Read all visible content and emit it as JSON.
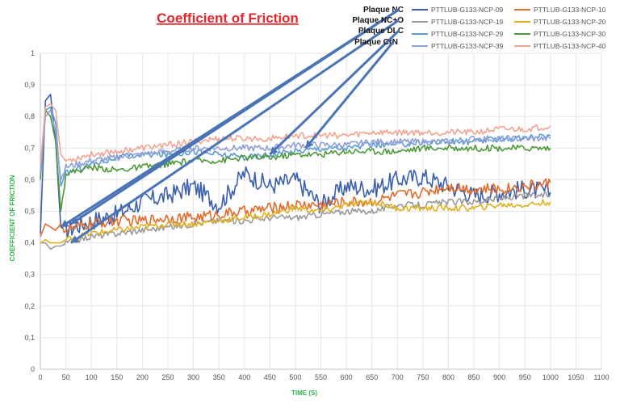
{
  "chart_data": {
    "type": "line",
    "title": "Coefficient of Friction",
    "xlabel": "TIME (S)",
    "ylabel": "COEFFICIENT OF FRICTION",
    "xlim": [
      0,
      1100
    ],
    "ylim": [
      0,
      1
    ],
    "x_ticks": [
      "0",
      "50",
      "100",
      "150",
      "200",
      "250",
      "300",
      "350",
      "400",
      "450",
      "500",
      "550",
      "600",
      "650",
      "700",
      "750",
      "800",
      "850",
      "900",
      "950",
      "1000",
      "1050",
      "1100"
    ],
    "y_ticks": [
      "0",
      "0,1",
      "0,2",
      "0,3",
      "0,4",
      "0,5",
      "0,6",
      "0,7",
      "0,8",
      "0,9",
      "1"
    ],
    "grid": true,
    "legend_position": "top-right",
    "annotations": [
      {
        "text": "Plaque NC",
        "points_to": [
          [
            60,
            0.46
          ],
          [
            40,
            0.45
          ]
        ]
      },
      {
        "text": "Plaque NC+O",
        "points_to": [
          [
            60,
            0.4
          ]
        ]
      },
      {
        "text": "Plaque DLC",
        "points_to": [
          [
            450,
            0.68
          ]
        ]
      },
      {
        "text": "Plaque CrN",
        "points_to": [
          [
            520,
            0.7
          ]
        ]
      }
    ],
    "series": [
      {
        "name": "PTTLUB-G133-NCP-09",
        "color": "#3a5fac",
        "x": [
          0,
          10,
          20,
          30,
          40,
          50,
          100,
          150,
          200,
          250,
          300,
          350,
          400,
          450,
          500,
          550,
          600,
          650,
          700,
          750,
          800,
          850,
          900,
          950,
          1000
        ],
        "y": [
          0.43,
          0.85,
          0.87,
          0.72,
          0.45,
          0.44,
          0.47,
          0.49,
          0.53,
          0.55,
          0.58,
          0.52,
          0.62,
          0.58,
          0.6,
          0.52,
          0.58,
          0.57,
          0.6,
          0.61,
          0.58,
          0.55,
          0.56,
          0.57,
          0.56
        ]
      },
      {
        "name": "PTTLUB-G133-NCP-10",
        "color": "#e36b2a",
        "x": [
          0,
          10,
          20,
          30,
          40,
          50,
          100,
          150,
          200,
          250,
          300,
          350,
          400,
          450,
          500,
          550,
          600,
          650,
          700,
          750,
          800,
          850,
          900,
          950,
          1000
        ],
        "y": [
          0.42,
          0.46,
          0.45,
          0.44,
          0.46,
          0.44,
          0.46,
          0.47,
          0.47,
          0.48,
          0.48,
          0.49,
          0.5,
          0.51,
          0.52,
          0.52,
          0.53,
          0.53,
          0.55,
          0.56,
          0.58,
          0.57,
          0.57,
          0.58,
          0.59
        ]
      },
      {
        "name": "PTTLUB-G133-NCP-19",
        "color": "#9a9a9a",
        "x": [
          0,
          10,
          20,
          30,
          40,
          50,
          100,
          150,
          200,
          250,
          300,
          350,
          400,
          450,
          500,
          550,
          600,
          650,
          700,
          750,
          800,
          850,
          900,
          950,
          1000
        ],
        "y": [
          0.4,
          0.4,
          0.38,
          0.39,
          0.39,
          0.4,
          0.42,
          0.43,
          0.44,
          0.45,
          0.46,
          0.47,
          0.47,
          0.48,
          0.48,
          0.49,
          0.5,
          0.5,
          0.52,
          0.52,
          0.53,
          0.53,
          0.54,
          0.55,
          0.55
        ]
      },
      {
        "name": "PTTLUB-G133-NCP-20",
        "color": "#e0b020",
        "x": [
          0,
          10,
          20,
          30,
          40,
          50,
          100,
          150,
          200,
          250,
          300,
          350,
          400,
          450,
          500,
          550,
          600,
          650,
          700,
          750,
          800,
          850,
          900,
          950,
          1000
        ],
        "y": [
          0.4,
          0.41,
          0.4,
          0.4,
          0.4,
          0.41,
          0.43,
          0.44,
          0.45,
          0.46,
          0.46,
          0.47,
          0.48,
          0.49,
          0.51,
          0.5,
          0.52,
          0.53,
          0.51,
          0.51,
          0.51,
          0.51,
          0.52,
          0.52,
          0.53
        ]
      },
      {
        "name": "PTTLUB-G133-NCP-29",
        "color": "#5b9bd5",
        "x": [
          0,
          10,
          20,
          30,
          40,
          50,
          100,
          150,
          200,
          250,
          300,
          350,
          400,
          450,
          500,
          550,
          600,
          650,
          700,
          750,
          800,
          850,
          900,
          950,
          1000
        ],
        "y": [
          0.62,
          0.82,
          0.83,
          0.78,
          0.58,
          0.62,
          0.65,
          0.67,
          0.68,
          0.68,
          0.69,
          0.68,
          0.67,
          0.68,
          0.69,
          0.7,
          0.7,
          0.71,
          0.71,
          0.72,
          0.72,
          0.72,
          0.73,
          0.73,
          0.74
        ]
      },
      {
        "name": "PTTLUB-G133-NCP-30",
        "color": "#4e9a3a",
        "x": [
          0,
          10,
          20,
          30,
          40,
          50,
          100,
          150,
          200,
          250,
          300,
          350,
          400,
          450,
          500,
          550,
          600,
          650,
          700,
          750,
          800,
          850,
          900,
          950,
          1000
        ],
        "y": [
          0.6,
          0.82,
          0.8,
          0.72,
          0.5,
          0.62,
          0.64,
          0.63,
          0.64,
          0.65,
          0.66,
          0.66,
          0.67,
          0.67,
          0.68,
          0.68,
          0.69,
          0.69,
          0.69,
          0.7,
          0.7,
          0.7,
          0.7,
          0.7,
          0.7
        ]
      },
      {
        "name": "PTTLUB-G133-NCP-39",
        "color": "#8f9fd8",
        "x": [
          0,
          10,
          20,
          30,
          40,
          50,
          100,
          150,
          200,
          250,
          300,
          350,
          400,
          450,
          500,
          550,
          600,
          650,
          700,
          750,
          800,
          850,
          900,
          950,
          1000
        ],
        "y": [
          0.62,
          0.8,
          0.82,
          0.75,
          0.6,
          0.64,
          0.66,
          0.67,
          0.68,
          0.69,
          0.7,
          0.7,
          0.7,
          0.7,
          0.71,
          0.71,
          0.71,
          0.72,
          0.72,
          0.72,
          0.72,
          0.73,
          0.73,
          0.73,
          0.73
        ]
      },
      {
        "name": "PTTLUB-G133-NCP-40",
        "color": "#f0a591",
        "x": [
          0,
          10,
          20,
          30,
          40,
          50,
          100,
          150,
          200,
          250,
          300,
          350,
          400,
          450,
          500,
          550,
          600,
          650,
          700,
          750,
          800,
          850,
          900,
          950,
          1000
        ],
        "y": [
          0.65,
          0.83,
          0.84,
          0.82,
          0.68,
          0.66,
          0.68,
          0.69,
          0.7,
          0.71,
          0.72,
          0.73,
          0.73,
          0.73,
          0.74,
          0.74,
          0.74,
          0.75,
          0.75,
          0.75,
          0.75,
          0.75,
          0.76,
          0.76,
          0.77
        ]
      }
    ]
  }
}
